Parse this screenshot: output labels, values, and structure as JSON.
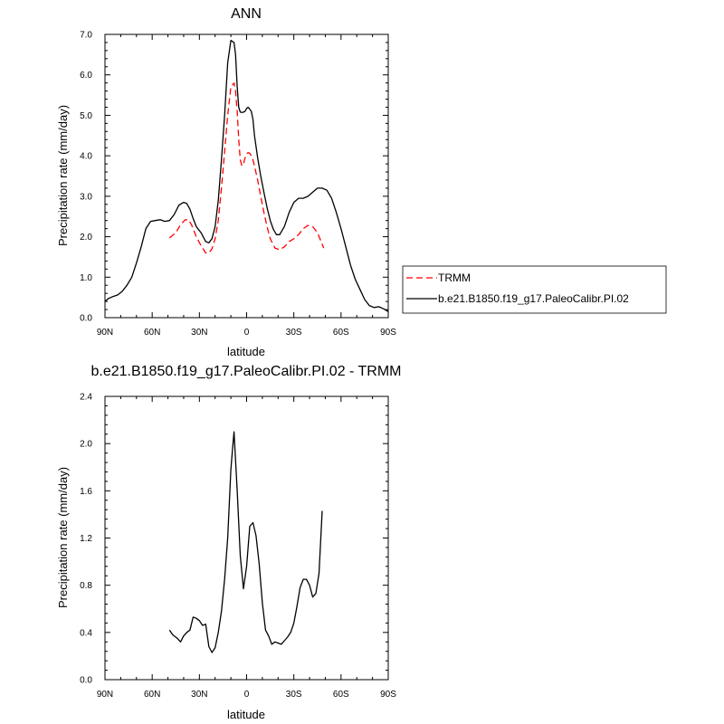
{
  "chart_data": [
    {
      "type": "line",
      "title": "ANN",
      "xlabel": "latitude",
      "ylabel": "Precipitation rate (mm/day)",
      "xlim": [
        90,
        -90
      ],
      "ylim": [
        0,
        7
      ],
      "x_ticks": [
        {
          "value": 90,
          "label": "90N"
        },
        {
          "value": 60,
          "label": "60N"
        },
        {
          "value": 30,
          "label": "30N"
        },
        {
          "value": 0,
          "label": "0"
        },
        {
          "value": -30,
          "label": "30S"
        },
        {
          "value": -60,
          "label": "60S"
        },
        {
          "value": -90,
          "label": "90S"
        }
      ],
      "y_ticks": [
        {
          "value": 0,
          "label": "0.0"
        },
        {
          "value": 1,
          "label": "1.0"
        },
        {
          "value": 2,
          "label": "2.0"
        },
        {
          "value": 3,
          "label": "3.0"
        },
        {
          "value": 4,
          "label": "4.0"
        },
        {
          "value": 5,
          "label": "5.0"
        },
        {
          "value": 6,
          "label": "6.0"
        },
        {
          "value": 7,
          "label": "7.0"
        }
      ],
      "legend_position": "right",
      "series": [
        {
          "name": "TRMM",
          "color": "#ff0000",
          "dash": true,
          "x": [
            49,
            45,
            42,
            39,
            37,
            35,
            32,
            29,
            26,
            24,
            22,
            20,
            18,
            16,
            14,
            12,
            10,
            8,
            7,
            6,
            5,
            4,
            3,
            2,
            1,
            0,
            -1,
            -2,
            -3,
            -4,
            -5,
            -7,
            -9,
            -11,
            -13,
            -15,
            -18,
            -21,
            -24,
            -27,
            -30,
            -33,
            -36,
            -39,
            -42,
            -45,
            -49
          ],
          "y": [
            1.97,
            2.1,
            2.3,
            2.42,
            2.42,
            2.3,
            2.0,
            1.78,
            1.6,
            1.6,
            1.7,
            1.95,
            2.4,
            3.2,
            4.1,
            5.0,
            5.7,
            5.8,
            5.6,
            5.1,
            4.4,
            3.9,
            3.75,
            3.8,
            3.95,
            4.05,
            4.08,
            4.06,
            4.0,
            3.9,
            3.75,
            3.4,
            3.0,
            2.6,
            2.25,
            1.95,
            1.72,
            1.68,
            1.75,
            1.88,
            1.95,
            2.05,
            2.2,
            2.28,
            2.25,
            2.1,
            1.72
          ]
        },
        {
          "name": "b.e21.B1850.f19_g17.PaleoCalibr.PI.02",
          "color": "#000000",
          "dash": false,
          "x": [
            90,
            88,
            85,
            82,
            79,
            76,
            73,
            70,
            67,
            64,
            61,
            58,
            55,
            52,
            49,
            46,
            43,
            40,
            38,
            36,
            34,
            32,
            29,
            26,
            24,
            22,
            20,
            18,
            16,
            14,
            12,
            10,
            8,
            7,
            6,
            5,
            4,
            3,
            2,
            1,
            0,
            -1,
            -2,
            -3,
            -4,
            -5,
            -7,
            -9,
            -11,
            -13,
            -15,
            -17,
            -19,
            -21,
            -24,
            -27,
            -30,
            -33,
            -36,
            -39,
            -42,
            -45,
            -48,
            -51,
            -54,
            -57,
            -60,
            -63,
            -66,
            -69,
            -72,
            -75,
            -78,
            -81,
            -84,
            -87,
            -90
          ],
          "y": [
            0.4,
            0.47,
            0.52,
            0.56,
            0.65,
            0.8,
            1.0,
            1.35,
            1.75,
            2.2,
            2.38,
            2.4,
            2.42,
            2.38,
            2.4,
            2.55,
            2.78,
            2.85,
            2.82,
            2.68,
            2.45,
            2.25,
            2.1,
            1.88,
            1.85,
            1.95,
            2.25,
            2.9,
            3.9,
            5.0,
            6.3,
            6.85,
            6.8,
            6.5,
            5.7,
            5.2,
            5.08,
            5.07,
            5.08,
            5.1,
            5.17,
            5.2,
            5.15,
            5.1,
            4.9,
            4.5,
            3.95,
            3.5,
            3.1,
            2.72,
            2.4,
            2.18,
            2.05,
            2.05,
            2.25,
            2.6,
            2.85,
            2.95,
            2.95,
            3.0,
            3.1,
            3.2,
            3.2,
            3.15,
            2.95,
            2.6,
            2.2,
            1.75,
            1.3,
            0.95,
            0.7,
            0.45,
            0.3,
            0.25,
            0.27,
            0.22,
            0.15
          ]
        }
      ]
    },
    {
      "type": "line",
      "title": "b.e21.B1850.f19_g17.PaleoCalibr.PI.02 - TRMM",
      "xlabel": "latitude",
      "ylabel": "Precipitation rate (mm/day)",
      "xlim": [
        90,
        -90
      ],
      "ylim": [
        0,
        2.4
      ],
      "x_ticks": [
        {
          "value": 90,
          "label": "90N"
        },
        {
          "value": 60,
          "label": "60N"
        },
        {
          "value": 30,
          "label": "30N"
        },
        {
          "value": 0,
          "label": "0"
        },
        {
          "value": -30,
          "label": "30S"
        },
        {
          "value": -60,
          "label": "60S"
        },
        {
          "value": -90,
          "label": "90S"
        }
      ],
      "y_ticks": [
        {
          "value": 0,
          "label": "0.0"
        },
        {
          "value": 0.4,
          "label": "0.4"
        },
        {
          "value": 0.8,
          "label": "0.8"
        },
        {
          "value": 1.2,
          "label": "1.2"
        },
        {
          "value": 1.6,
          "label": "1.6"
        },
        {
          "value": 2.0,
          "label": "2.0"
        },
        {
          "value": 2.4,
          "label": "2.4"
        }
      ],
      "series": [
        {
          "color": "#000000",
          "dash": false,
          "x": [
            49,
            47,
            44,
            42,
            40,
            38,
            36,
            34,
            32,
            30,
            28,
            26,
            24,
            22,
            20,
            18,
            16,
            14,
            12,
            10,
            9,
            8,
            6,
            4,
            2,
            0,
            -2,
            -4,
            -6,
            -8,
            -10,
            -12,
            -14,
            -16,
            -18,
            -20,
            -22,
            -24,
            -26,
            -28,
            -30,
            -32,
            -34,
            -36,
            -38,
            -40,
            -42,
            -44,
            -46,
            -48
          ],
          "y": [
            0.42,
            0.38,
            0.35,
            0.32,
            0.37,
            0.4,
            0.42,
            0.53,
            0.52,
            0.5,
            0.46,
            0.47,
            0.28,
            0.23,
            0.27,
            0.4,
            0.58,
            0.85,
            1.2,
            1.78,
            1.95,
            2.1,
            1.6,
            1.05,
            0.77,
            0.96,
            1.3,
            1.33,
            1.22,
            0.98,
            0.65,
            0.42,
            0.37,
            0.3,
            0.32,
            0.31,
            0.3,
            0.33,
            0.36,
            0.4,
            0.48,
            0.62,
            0.78,
            0.85,
            0.85,
            0.8,
            0.7,
            0.73,
            0.9,
            1.43
          ]
        }
      ]
    }
  ]
}
